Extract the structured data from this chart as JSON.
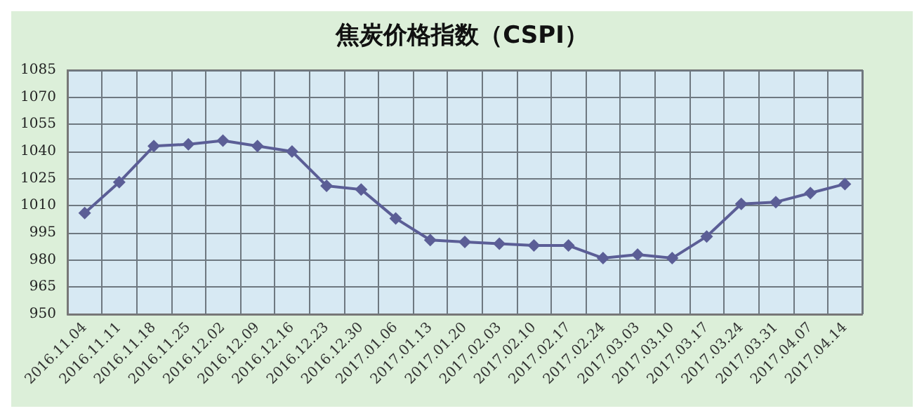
{
  "chart_data": {
    "type": "line",
    "title": "焦炭价格指数（CSPI）",
    "categories": [
      "2016.11.04",
      "2016.11.11",
      "2016.11.18",
      "2016.11.25",
      "2016.12.02",
      "2016.12.09",
      "2016.12.16",
      "2016.12.23",
      "2016.12.30",
      "2017.01.06",
      "2017.01.13",
      "2017.01.20",
      "2017.02.03",
      "2017.02.10",
      "2017.02.17",
      "2017.02.24",
      "2017.03.03",
      "2017.03.10",
      "2017.03.17",
      "2017.03.24",
      "2017.03.31",
      "2017.04.07",
      "2017.04.14"
    ],
    "series": [
      {
        "color": "#5b5e96",
        "values": [
          1006,
          1023,
          1043,
          1044,
          1046,
          1043,
          1040,
          1021,
          1019,
          1003,
          991,
          990,
          989,
          988,
          988,
          981,
          983,
          981,
          993,
          1011,
          1012,
          1017,
          1022
        ]
      }
    ],
    "ylim": [
      950,
      1085
    ],
    "yticks": [
      950,
      965,
      980,
      995,
      1010,
      1025,
      1040,
      1055,
      1070,
      1085
    ],
    "grid": true,
    "marker": "diamond",
    "line_style": "solid"
  }
}
